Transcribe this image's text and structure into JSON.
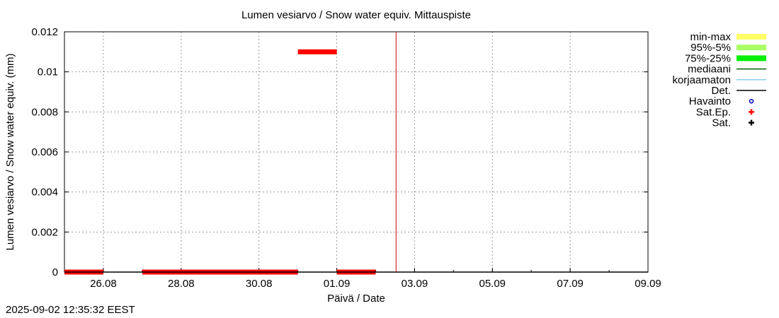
{
  "chart_data": {
    "type": "scatter",
    "title": "Lumen vesiarvo / Snow water equiv.  Mittauspiste",
    "xlabel": "Päivä / Date",
    "ylabel": "Lumen vesiarvo / Snow water equiv. (mm)",
    "x_ticks": [
      "26.08",
      "28.08",
      "30.08",
      "01.09",
      "03.09",
      "05.09",
      "07.09",
      "09.09"
    ],
    "y_ticks": [
      "0",
      "0.002",
      "0.004",
      "0.006",
      "0.008",
      "0.01",
      "0.012"
    ],
    "xlim": [
      "2025-08-25",
      "2025-09-09"
    ],
    "ylim": [
      0,
      0.012
    ],
    "grid": true,
    "legend_position": "right",
    "legend": [
      {
        "label": "min-max",
        "color": "#ffff66",
        "style": "band"
      },
      {
        "label": "95%-5%",
        "color": "#aaff66",
        "style": "band"
      },
      {
        "label": "75%-25%",
        "color": "#00ee00",
        "style": "band"
      },
      {
        "label": "mediaani",
        "color": "#006400",
        "style": "line"
      },
      {
        "label": "korjaamaton",
        "color": "#87ceeb",
        "style": "line"
      },
      {
        "label": "Det.",
        "color": "#000000",
        "style": "line"
      },
      {
        "label": "Havainto",
        "color": "#0000cc",
        "style": "circle"
      },
      {
        "label": "Sat.Ep.",
        "color": "#ff0000",
        "style": "plus"
      },
      {
        "label": "Sat.",
        "color": "#000000",
        "style": "plus"
      }
    ],
    "series": [
      {
        "name": "Sat.Ep.",
        "color": "#ff0000",
        "segments": [
          {
            "x": [
              "2025-08-25 00:00",
              "2025-08-26 00:00"
            ],
            "y": 0
          },
          {
            "x": [
              "2025-08-27 00:00",
              "2025-08-31 00:00"
            ],
            "y": 0
          },
          {
            "x": [
              "2025-08-31 00:00",
              "2025-09-01 00:00"
            ],
            "y": 0.011
          },
          {
            "x": [
              "2025-09-01 00:00",
              "2025-09-02 00:00"
            ],
            "y": 0
          }
        ]
      },
      {
        "name": "Det.",
        "color": "#000000",
        "x": [
          "2025-08-25 00:00",
          "2025-09-09 00:00"
        ],
        "y": 0
      }
    ],
    "now_marker": "2025-09-02 12:35"
  },
  "timestamp": "2025-09-02 12:35:32 EEST"
}
